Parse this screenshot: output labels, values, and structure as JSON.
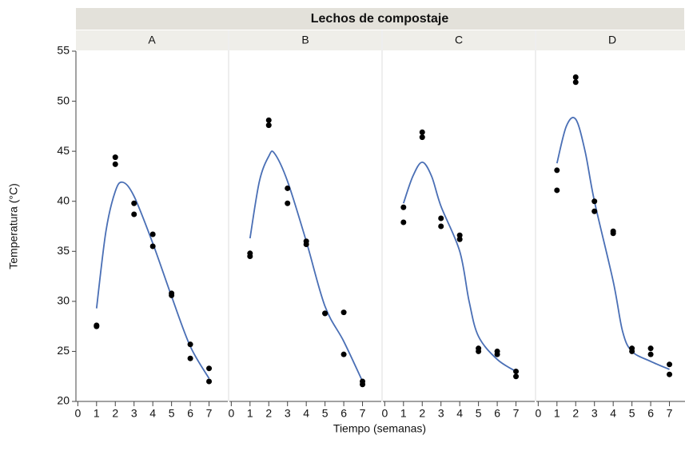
{
  "chart_data": {
    "type": "scatter",
    "title": "Lechos de compostaje",
    "xlabel": "Tiempo (semanas)",
    "ylabel": "Temperatura (°C)",
    "ylim": [
      20,
      55
    ],
    "yticks": [
      20,
      25,
      30,
      35,
      40,
      45,
      50,
      55
    ],
    "xlim": [
      -0.1,
      8
    ],
    "xticks": [
      0,
      1,
      2,
      3,
      4,
      5,
      6,
      7
    ],
    "point_color": "#000000",
    "line_color": "#4a6fb5",
    "panels": [
      {
        "title": "A",
        "x": [
          1,
          1,
          2,
          2,
          3,
          3,
          4,
          4,
          5,
          5,
          6,
          6,
          7,
          7
        ],
        "y": [
          27.5,
          27.6,
          44.4,
          43.7,
          39.8,
          38.7,
          36.7,
          35.5,
          30.8,
          30.6,
          25.7,
          24.3,
          23.3,
          22.0
        ],
        "smooth": {
          "x": [
            1,
            1.5,
            2,
            2.4,
            3,
            4,
            5,
            6,
            7
          ],
          "y": [
            29.3,
            37,
            41,
            41.9,
            40.5,
            35.8,
            30.5,
            25.5,
            22.3
          ]
        }
      },
      {
        "title": "B",
        "x": [
          1,
          1,
          2,
          2,
          3,
          3,
          4,
          4,
          5,
          5,
          6,
          6,
          7,
          7
        ],
        "y": [
          34.8,
          34.5,
          48.1,
          47.6,
          41.3,
          39.8,
          36,
          35.7,
          28.8,
          28.8,
          28.9,
          24.7,
          22,
          21.7
        ],
        "smooth": {
          "x": [
            1,
            1.5,
            2,
            2.3,
            3,
            4,
            5,
            6,
            7
          ],
          "y": [
            36.3,
            42,
            44.5,
            44.8,
            42,
            36,
            29.5,
            26,
            22
          ]
        }
      },
      {
        "title": "C",
        "x": [
          1,
          1,
          2,
          2,
          3,
          3,
          4,
          4,
          5,
          5,
          6,
          6,
          7,
          7
        ],
        "y": [
          39.4,
          37.9,
          46.9,
          46.4,
          38.3,
          37.5,
          36.6,
          36.2,
          25.3,
          25,
          25,
          24.7,
          23,
          22.5
        ],
        "smooth": {
          "x": [
            1,
            1.5,
            2,
            2.5,
            3,
            4,
            4.5,
            5,
            6,
            7
          ],
          "y": [
            39.8,
            42.5,
            43.9,
            42.5,
            39.5,
            35,
            30,
            26.5,
            24.2,
            23
          ]
        }
      },
      {
        "title": "D",
        "x": [
          1,
          1,
          2,
          2,
          3,
          3,
          4,
          4,
          5,
          5,
          6,
          6,
          7,
          7
        ],
        "y": [
          43.1,
          41.1,
          52.4,
          51.9,
          40,
          39,
          37,
          36.8,
          25.3,
          25,
          25.3,
          24.7,
          23.7,
          22.7
        ],
        "smooth": {
          "x": [
            1,
            1.5,
            2,
            2.5,
            3,
            4,
            4.5,
            5,
            6,
            7
          ],
          "y": [
            43.8,
            47.5,
            48.2,
            45,
            40,
            32,
            27,
            25,
            24,
            23.2
          ]
        }
      }
    ]
  }
}
